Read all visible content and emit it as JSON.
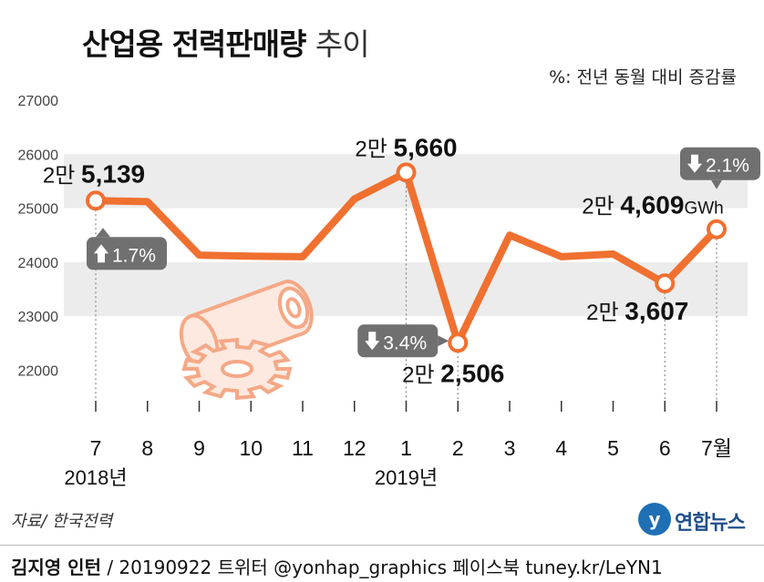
{
  "title": {
    "main": "산업용 전력판매량",
    "sub": "추이"
  },
  "note": "%: 전년 동월 대비 증감률",
  "source": "자료/ 한국전력",
  "footer": {
    "author": "김지영 인턴",
    "info": "/ 20190922 트위터 @yonhap_graphics 페이스북 tuney.kr/LeYN1"
  },
  "logo": {
    "name": "연합뉴스",
    "mark": "y"
  },
  "colors": {
    "line": "#f07030",
    "band": "#ececec",
    "callout": "#707070",
    "illustration": "#f5a886"
  },
  "chart_data": {
    "type": "line",
    "title": "산업용 전력판매량 추이",
    "categories": [
      "7",
      "8",
      "9",
      "10",
      "11",
      "12",
      "1",
      "2",
      "3",
      "4",
      "5",
      "6",
      "7월"
    ],
    "year_labels": [
      {
        "index": 0,
        "text": "2018년"
      },
      {
        "index": 6,
        "text": "2019년"
      }
    ],
    "series": [
      {
        "values": [
          25139,
          25120,
          24130,
          24110,
          24100,
          25170,
          25660,
          22506,
          24500,
          24100,
          24150,
          23607,
          24609
        ]
      }
    ],
    "ylim": [
      21600,
      27000
    ],
    "yticks": [
      22000,
      23000,
      24000,
      25000,
      26000,
      27000
    ],
    "unit": "GWh",
    "value_labels": [
      {
        "index": 0,
        "text": "2만 5,139"
      },
      {
        "index": 6,
        "text": "2만 5,660"
      },
      {
        "index": 7,
        "text": "2만 2,506"
      },
      {
        "index": 11,
        "text": "2만 3,607"
      },
      {
        "index": 12,
        "text": "2만 4,609"
      }
    ],
    "change_callouts": [
      {
        "index": 0,
        "direction": "up",
        "text": "1.7%"
      },
      {
        "index": 7,
        "direction": "down",
        "text": "3.4%"
      },
      {
        "index": 12,
        "direction": "down",
        "text": "2.1%"
      }
    ],
    "grid": "alternating bands"
  }
}
